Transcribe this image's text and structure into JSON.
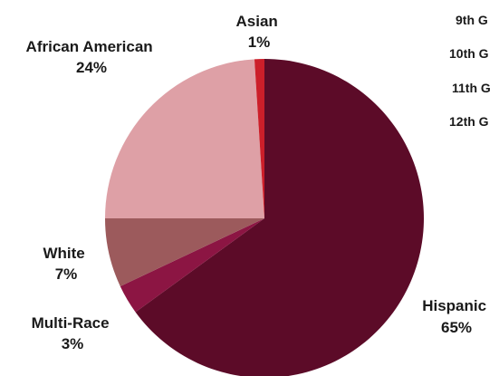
{
  "chart_data": {
    "type": "pie",
    "title": "",
    "slices": [
      {
        "label": "Hispanic",
        "value": 65,
        "pct_text": "65%",
        "color": "#5c0b28"
      },
      {
        "label": "Multi-Race",
        "value": 3,
        "pct_text": "3%",
        "color": "#8c1543"
      },
      {
        "label": "White",
        "value": 7,
        "pct_text": "7%",
        "color": "#9c5a5c"
      },
      {
        "label": "African American",
        "value": 24,
        "pct_text": "24%",
        "color": "#dea0a6"
      },
      {
        "label": "Asian",
        "value": 1,
        "pct_text": "1%",
        "color": "#cc1f2a"
      }
    ],
    "start_angle_deg": 0,
    "direction": "clockwise"
  },
  "side_legend": {
    "items": [
      "9th G",
      "10th G",
      "11th G",
      "12th G"
    ]
  }
}
